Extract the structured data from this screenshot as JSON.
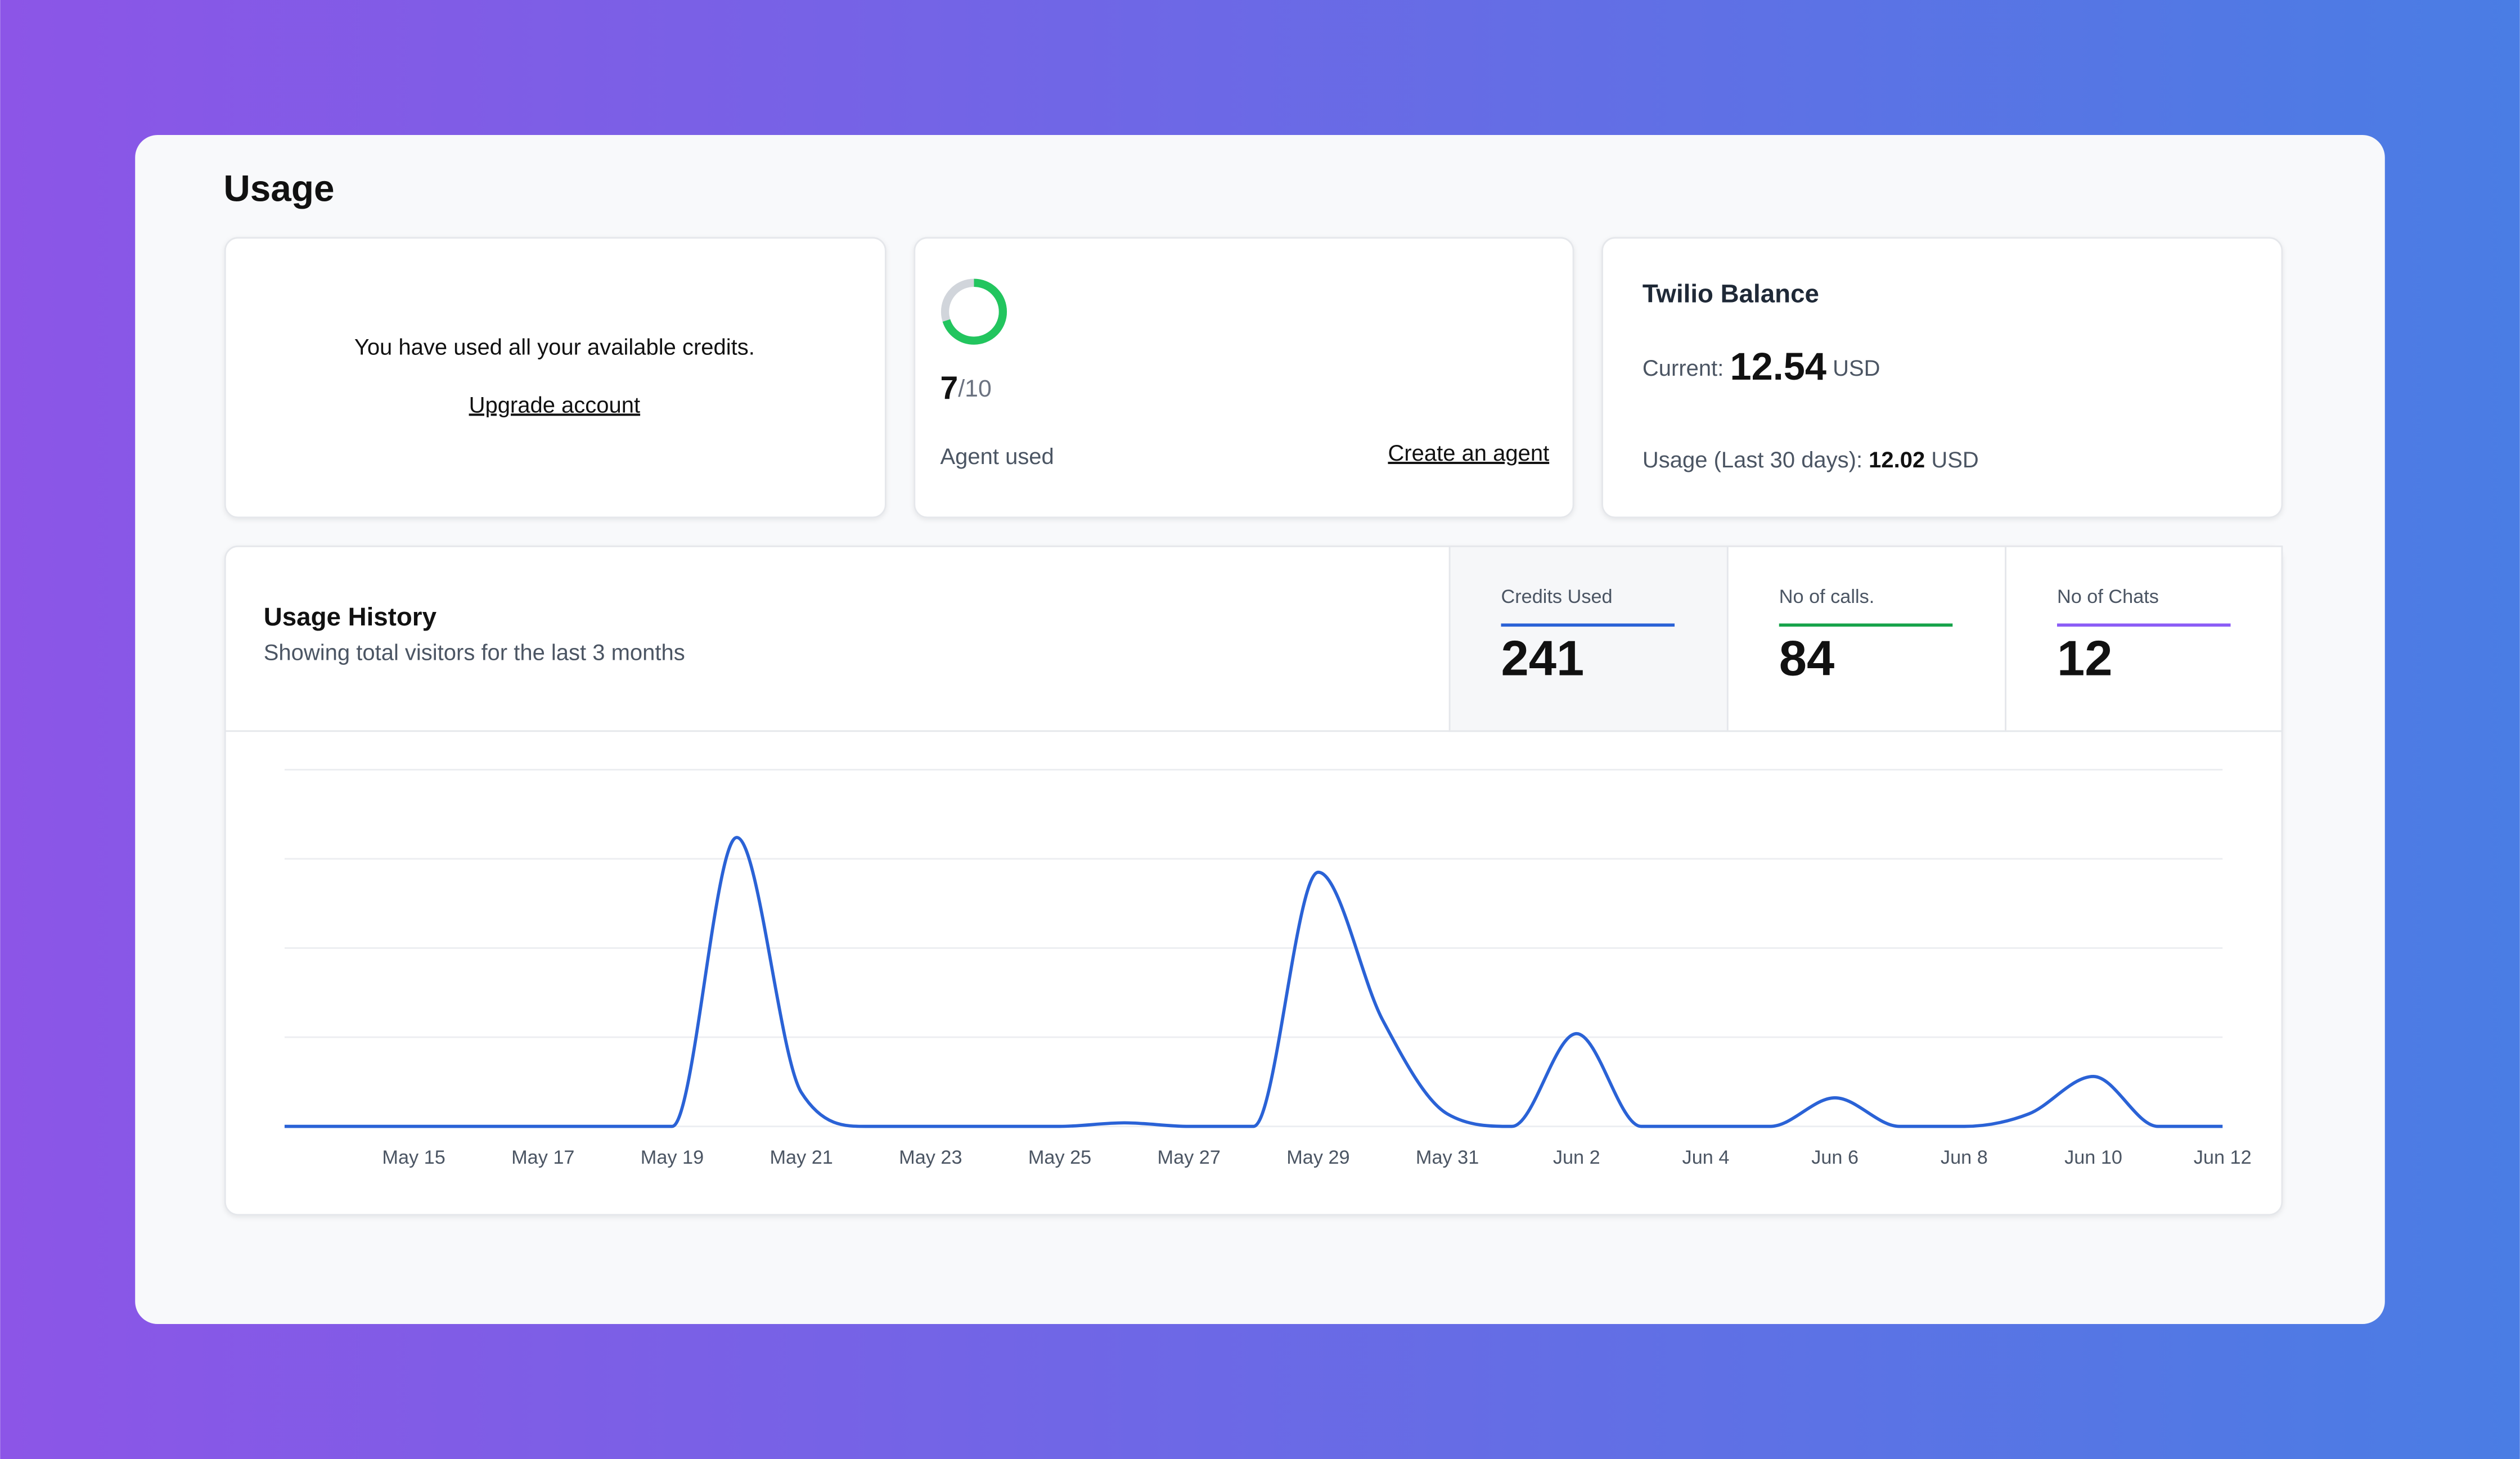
{
  "page": {
    "title": "Usage"
  },
  "credits_card": {
    "message": "You have used all your available credits.",
    "link": "Upgrade account"
  },
  "agent_card": {
    "used": 7,
    "limit": {
      "value": 10,
      "label": "/10"
    },
    "caption": "Agent used",
    "link": "Create an agent",
    "ring_color": "#22c55e",
    "track_color": "#d1d5db"
  },
  "twilio_card": {
    "title": "Twilio Balance",
    "current_label": "Current:",
    "current_value": "12.54",
    "current_unit": "USD",
    "usage_label": "Usage (Last 30 days):",
    "usage_value": "12.02",
    "usage_unit": "USD"
  },
  "history": {
    "title": "Usage History",
    "subtitle": "Showing total visitors for the last 3 months",
    "tabs": [
      {
        "label": "Credits Used",
        "value": "241",
        "color": "#2a62d6",
        "active": true
      },
      {
        "label": "No of calls.",
        "value": "84",
        "color": "#16a34a",
        "active": false
      },
      {
        "label": "No of Chats",
        "value": "12",
        "color": "#8b5cf6",
        "active": false
      }
    ]
  },
  "chart_data": {
    "type": "line",
    "categories": [
      null,
      null,
      "May 15",
      null,
      "May 17",
      null,
      "May 19",
      null,
      "May 21",
      null,
      "May 23",
      null,
      "May 25",
      null,
      "May 27",
      null,
      "May 29",
      null,
      "May 31",
      null,
      "Jun 2",
      null,
      "Jun 4",
      null,
      "Jun 6",
      null,
      "Jun 8",
      null,
      "Jun 10",
      null,
      "Jun 12"
    ],
    "values": [
      0,
      0,
      0,
      0,
      0,
      0,
      0,
      3.24,
      0.38,
      0,
      0,
      0,
      0,
      0.04,
      0,
      0,
      2.85,
      1.19,
      0.14,
      0,
      1.04,
      0,
      0,
      0,
      0.32,
      0,
      0,
      0.14,
      0.56,
      0,
      0
    ],
    "color": "#2a62d6",
    "ylim": [
      0,
      4
    ],
    "yticks": [
      0,
      1,
      2,
      3,
      4
    ],
    "grid": true
  }
}
